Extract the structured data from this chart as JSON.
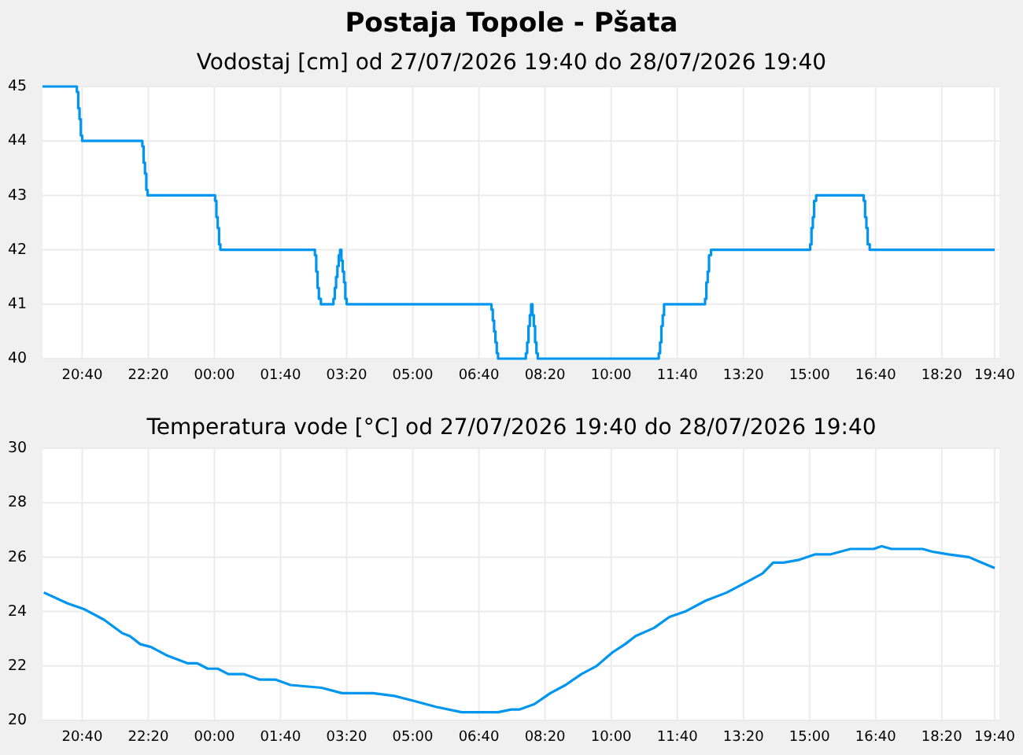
{
  "chart_data": [
    {
      "type": "step",
      "title": "Postaja Topole - Pšata",
      "subtitle": "Vodostaj [cm] od 27/07/2026 19:40 do 28/07/2026 19:40",
      "x": [
        "2026-07-27T19:40",
        "2026-07-27T20:32",
        "2026-07-27T20:34",
        "2026-07-27T20:36",
        "2026-07-27T20:38",
        "2026-07-27T20:40",
        "2026-07-27T22:11",
        "2026-07-27T22:13",
        "2026-07-27T22:15",
        "2026-07-27T22:17",
        "2026-07-27T22:19",
        "2026-07-28T00:01",
        "2026-07-28T00:03",
        "2026-07-28T00:05",
        "2026-07-28T00:07",
        "2026-07-28T00:09",
        "2026-07-28T02:32",
        "2026-07-28T02:34",
        "2026-07-28T02:36",
        "2026-07-28T02:38",
        "2026-07-28T02:41",
        "2026-07-28T03:00",
        "2026-07-28T03:02",
        "2026-07-28T03:04",
        "2026-07-28T03:06",
        "2026-07-28T03:08",
        "2026-07-28T03:10",
        "2026-07-28T03:12",
        "2026-07-28T03:14",
        "2026-07-28T03:16",
        "2026-07-28T03:18",
        "2026-07-28T03:20",
        "2026-07-28T06:59",
        "2026-07-28T07:01",
        "2026-07-28T07:03",
        "2026-07-28T07:05",
        "2026-07-28T07:07",
        "2026-07-28T07:09",
        "2026-07-28T07:51",
        "2026-07-28T07:53",
        "2026-07-28T07:55",
        "2026-07-28T07:57",
        "2026-07-28T07:59",
        "2026-07-28T08:01",
        "2026-07-28T08:03",
        "2026-07-28T08:05",
        "2026-07-28T08:07",
        "2026-07-28T08:09",
        "2026-07-28T11:12",
        "2026-07-28T11:14",
        "2026-07-28T11:16",
        "2026-07-28T11:18",
        "2026-07-28T11:20",
        "2026-07-28T12:22",
        "2026-07-28T12:24",
        "2026-07-28T12:26",
        "2026-07-28T12:28",
        "2026-07-28T12:31",
        "2026-07-28T15:01",
        "2026-07-28T15:03",
        "2026-07-28T15:05",
        "2026-07-28T15:07",
        "2026-07-28T15:10",
        "2026-07-28T16:22",
        "2026-07-28T16:24",
        "2026-07-28T16:26",
        "2026-07-28T16:28",
        "2026-07-28T16:31",
        "2026-07-28T19:40"
      ],
      "series": [
        {
          "color": "#0096f0",
          "values": [
            45,
            44.9,
            44.6,
            44.4,
            44.1,
            44,
            43.9,
            43.6,
            43.4,
            43.1,
            43,
            42.9,
            42.6,
            42.4,
            42.1,
            42,
            41.9,
            41.6,
            41.3,
            41.1,
            41,
            41.1,
            41.3,
            41.5,
            41.7,
            41.9,
            42,
            41.8,
            41.6,
            41.4,
            41.1,
            41,
            40.9,
            40.7,
            40.5,
            40.3,
            40.1,
            40,
            40.1,
            40.3,
            40.6,
            40.8,
            41,
            40.8,
            40.6,
            40.3,
            40.1,
            40,
            40.1,
            40.3,
            40.6,
            40.8,
            41,
            41.1,
            41.4,
            41.6,
            41.9,
            42,
            42.1,
            42.4,
            42.6,
            42.9,
            43,
            42.9,
            42.6,
            42.4,
            42.1,
            42,
            42
          ]
        }
      ],
      "xlim": [
        "2026-07-27T19:40",
        "2026-07-28T19:40"
      ],
      "xticks": [
        {
          "value": "2026-07-27T20:40",
          "label": "20:40"
        },
        {
          "value": "2026-07-27T22:20",
          "label": "22:20"
        },
        {
          "value": "2026-07-28T00:00",
          "label": "00:00"
        },
        {
          "value": "2026-07-28T01:40",
          "label": "01:40"
        },
        {
          "value": "2026-07-28T03:20",
          "label": "03:20"
        },
        {
          "value": "2026-07-28T05:00",
          "label": "05:00"
        },
        {
          "value": "2026-07-28T06:40",
          "label": "06:40"
        },
        {
          "value": "2026-07-28T08:20",
          "label": "08:20"
        },
        {
          "value": "2026-07-28T10:00",
          "label": "10:00"
        },
        {
          "value": "2026-07-28T11:40",
          "label": "11:40"
        },
        {
          "value": "2026-07-28T13:20",
          "label": "13:20"
        },
        {
          "value": "2026-07-28T15:00",
          "label": "15:00"
        },
        {
          "value": "2026-07-28T16:40",
          "label": "16:40"
        },
        {
          "value": "2026-07-28T18:20",
          "label": "18:20"
        },
        {
          "value": "2026-07-28T19:40",
          "label": "19:40"
        }
      ],
      "ylim": [
        40,
        45
      ],
      "yticks": [
        40,
        41,
        42,
        43,
        44,
        45
      ],
      "grid": true
    },
    {
      "type": "line",
      "title": "Temperatura vode [°C] od 27/07/2026 19:40 do 28/07/2026 19:40",
      "x": [
        "2026-07-27T19:42",
        "2026-07-27T20:18",
        "2026-07-27T20:42",
        "2026-07-27T21:13",
        "2026-07-27T21:41",
        "2026-07-27T21:52",
        "2026-07-27T22:08",
        "2026-07-27T22:24",
        "2026-07-27T22:47",
        "2026-07-27T23:19",
        "2026-07-27T23:34",
        "2026-07-27T23:50",
        "2026-07-28T00:05",
        "2026-07-28T00:21",
        "2026-07-28T00:45",
        "2026-07-28T01:08",
        "2026-07-28T01:32",
        "2026-07-28T01:55",
        "2026-07-28T02:42",
        "2026-07-28T03:13",
        "2026-07-28T04:00",
        "2026-07-28T04:32",
        "2026-07-28T05:04",
        "2026-07-28T05:35",
        "2026-07-28T06:14",
        "2026-07-28T07:09",
        "2026-07-28T07:29",
        "2026-07-28T07:41",
        "2026-07-28T08:04",
        "2026-07-28T08:28",
        "2026-07-28T08:51",
        "2026-07-28T09:15",
        "2026-07-28T09:38",
        "2026-07-28T10:02",
        "2026-07-28T10:21",
        "2026-07-28T10:37",
        "2026-07-28T11:05",
        "2026-07-28T11:28",
        "2026-07-28T11:52",
        "2026-07-28T12:23",
        "2026-07-28T12:55",
        "2026-07-28T13:26",
        "2026-07-28T13:49",
        "2026-07-28T14:05",
        "2026-07-28T14:21",
        "2026-07-28T14:44",
        "2026-07-28T15:08",
        "2026-07-28T15:31",
        "2026-07-28T16:02",
        "2026-07-28T16:37",
        "2026-07-28T16:49",
        "2026-07-28T17:04",
        "2026-07-28T17:51",
        "2026-07-28T18:06",
        "2026-07-28T18:30",
        "2026-07-28T19:01",
        "2026-07-28T19:20",
        "2026-07-28T19:40"
      ],
      "series": [
        {
          "color": "#0096f0",
          "values": [
            24.7,
            24.3,
            24.1,
            23.7,
            23.2,
            23.1,
            22.8,
            22.7,
            22.4,
            22.1,
            22.1,
            21.9,
            21.9,
            21.7,
            21.7,
            21.5,
            21.5,
            21.3,
            21.2,
            21.0,
            21.0,
            20.9,
            20.7,
            20.5,
            20.3,
            20.3,
            20.4,
            20.4,
            20.6,
            21.0,
            21.3,
            21.7,
            22.0,
            22.5,
            22.8,
            23.1,
            23.4,
            23.8,
            24.0,
            24.4,
            24.7,
            25.1,
            25.4,
            25.8,
            25.8,
            25.9,
            26.1,
            26.1,
            26.3,
            26.3,
            26.4,
            26.3,
            26.3,
            26.2,
            26.1,
            26.0,
            25.8,
            25.6
          ]
        }
      ],
      "xlim": [
        "2026-07-27T19:40",
        "2026-07-28T19:40"
      ],
      "xticks": [
        {
          "value": "2026-07-27T20:40",
          "label": "20:40"
        },
        {
          "value": "2026-07-27T22:20",
          "label": "22:20"
        },
        {
          "value": "2026-07-28T00:00",
          "label": "00:00"
        },
        {
          "value": "2026-07-28T01:40",
          "label": "01:40"
        },
        {
          "value": "2026-07-28T03:20",
          "label": "03:20"
        },
        {
          "value": "2026-07-28T05:00",
          "label": "05:00"
        },
        {
          "value": "2026-07-28T06:40",
          "label": "06:40"
        },
        {
          "value": "2026-07-28T08:20",
          "label": "08:20"
        },
        {
          "value": "2026-07-28T10:00",
          "label": "10:00"
        },
        {
          "value": "2026-07-28T11:40",
          "label": "11:40"
        },
        {
          "value": "2026-07-28T13:20",
          "label": "13:20"
        },
        {
          "value": "2026-07-28T15:00",
          "label": "15:00"
        },
        {
          "value": "2026-07-28T16:40",
          "label": "16:40"
        },
        {
          "value": "2026-07-28T18:20",
          "label": "18:20"
        },
        {
          "value": "2026-07-28T19:40",
          "label": "19:40"
        }
      ],
      "ylim": [
        20,
        30
      ],
      "yticks": [
        20,
        22,
        24,
        26,
        28,
        30
      ],
      "grid": true
    }
  ]
}
